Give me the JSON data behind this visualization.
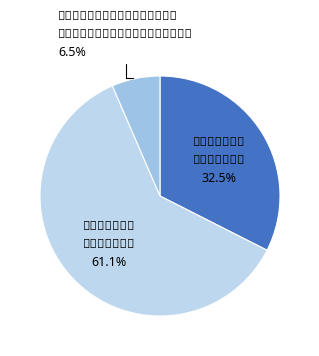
{
  "slices": [
    32.5,
    61.1,
    6.5
  ],
  "colors": [
    "#4472C4",
    "#BDD7EE",
    "#9DC3E6"
  ],
  "label_aru": "親と話し合った\nことが『ある』\n32.5%",
  "label_nai": "親と話し合った\nことが『ない』\n61.1%",
  "label_aru2": "親と話し合った\nことが［ある］\n32.5%",
  "label_nai2": "親と話し合った\nことが［ない］\n61.1%",
  "label_inside_aru": "親と話し合った\nことが［ある］\n32.5%",
  "label_inside_nai": "親と話し合った\nことが［ない］\n61.1%",
  "label_external": "親と話し合ったことは［ない］が、\n別の家族と話し合ったことが［ある］」\n6.5%",
  "startangle": 90,
  "background_color": "#FFFFFF",
  "font_size_inside": 9,
  "font_size_external": 9
}
